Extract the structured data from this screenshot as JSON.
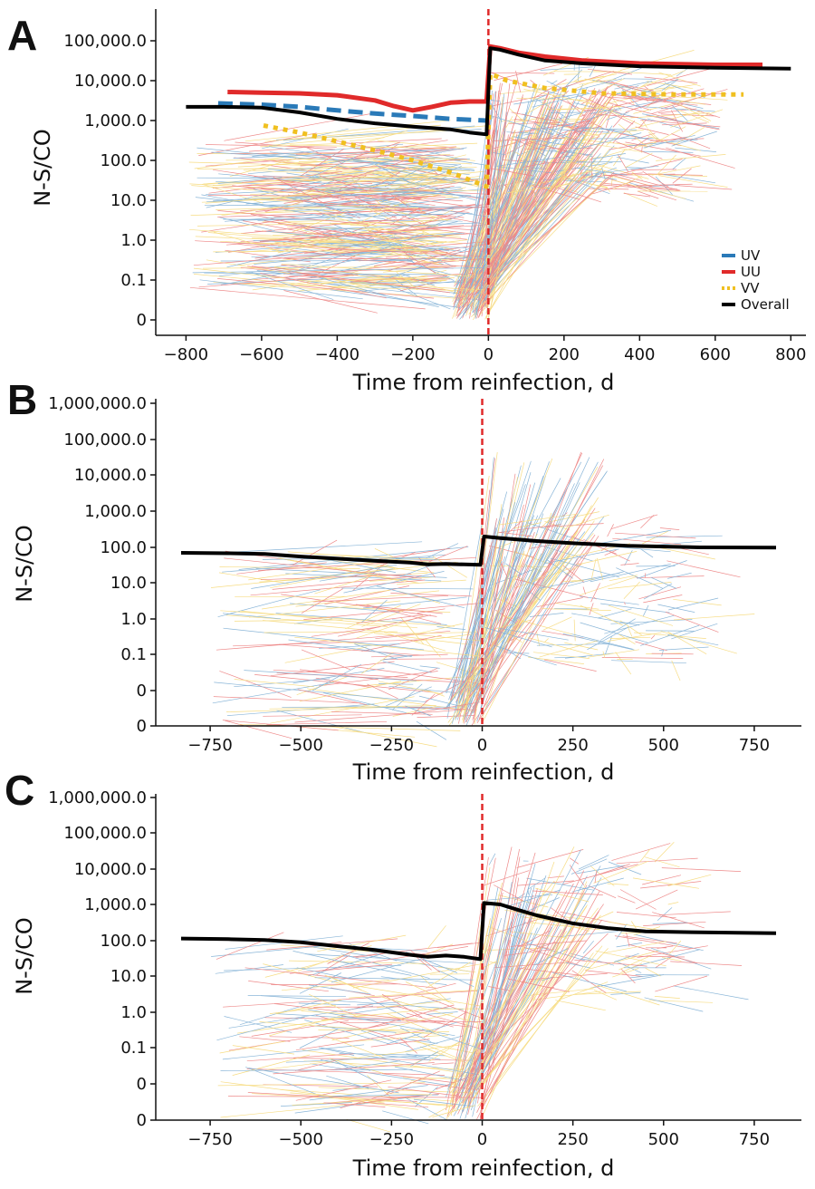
{
  "colors": {
    "UV": "#2a7ab8",
    "UU": "#e02a2a",
    "VV": "#f0c020",
    "Overall": "#000000",
    "reinfection_line": "#e02a2a",
    "axis": "#111111"
  },
  "chart_data": [
    {
      "type": "line",
      "panel": "A",
      "xlabel": "Time from reinfection, d",
      "ylabel": "N-S/CO",
      "xlim": [
        -880,
        840
      ],
      "xticks": [
        -800,
        -600,
        -400,
        -200,
        0,
        200,
        400,
        600,
        800
      ],
      "xtick_labels": [
        "−800",
        "−600",
        "−400",
        "−200",
        "0",
        "200",
        "400",
        "600",
        "800"
      ],
      "ylevels": [
        0,
        0.1,
        1,
        10,
        100,
        1000,
        10000,
        100000
      ],
      "ytick_labels": [
        "0",
        "0.1",
        "1.0",
        "10.0",
        "100.0",
        "1,000.0",
        "10,000.0",
        "100,000.0"
      ],
      "legend": {
        "position": "bottom-right",
        "entries": [
          "UV",
          "UU",
          "VV",
          "Overall"
        ]
      },
      "series": [
        {
          "name": "UV",
          "style": "dashed",
          "x": [
            -715,
            -600,
            -500,
            -400,
            -300,
            -200,
            -100,
            -5
          ],
          "y": [
            2700,
            2500,
            2200,
            1800,
            1500,
            1300,
            1100,
            1000
          ]
        },
        {
          "name": "UU",
          "style": "solid",
          "x": [
            -690,
            -600,
            -500,
            -400,
            -300,
            -250,
            -200,
            -150,
            -100,
            -50,
            -5,
            5,
            30,
            80,
            150,
            250,
            400,
            600,
            725
          ],
          "y": [
            5200,
            5000,
            4800,
            4300,
            3200,
            2300,
            1800,
            2200,
            2800,
            3000,
            3000,
            72000,
            65000,
            50000,
            40000,
            32000,
            27000,
            25000,
            25000
          ]
        },
        {
          "name": "VV",
          "style": "dotted",
          "x": [
            -595,
            -500,
            -400,
            -300,
            -200,
            -100,
            -5,
            5,
            50,
            150,
            300,
            500,
            675
          ],
          "y": [
            750,
            500,
            300,
            180,
            100,
            50,
            22,
            15000,
            10000,
            6500,
            4800,
            4500,
            4500
          ]
        },
        {
          "name": "Overall",
          "style": "solid",
          "x": [
            -800,
            -700,
            -600,
            -500,
            -400,
            -300,
            -200,
            -100,
            -50,
            -5,
            5,
            30,
            80,
            150,
            250,
            400,
            600,
            800
          ],
          "y": [
            2200,
            2200,
            2100,
            1600,
            1100,
            850,
            700,
            600,
            500,
            450,
            65000,
            60000,
            45000,
            32000,
            27000,
            23000,
            21000,
            20000
          ]
        }
      ]
    },
    {
      "type": "line",
      "panel": "B",
      "xlabel": "Time from reinfection, d",
      "ylabel": "N-S/CO",
      "xlim": [
        -900,
        880
      ],
      "xticks": [
        -750,
        -500,
        -250,
        0,
        250,
        500,
        750
      ],
      "xtick_labels": [
        "−750",
        "−500",
        "−250",
        "0",
        "250",
        "500",
        "750"
      ],
      "ylevels": [
        0,
        0,
        0.1,
        1,
        10,
        100,
        1000,
        10000,
        100000,
        1000000
      ],
      "ytick_labels": [
        "0",
        "0",
        "0.1",
        "1.0",
        "10.0",
        "100.0",
        "1,000.0",
        "10,000.0",
        "100,000.0",
        "1,000,000.0"
      ],
      "series": [
        {
          "name": "Overall",
          "style": "solid",
          "x": [
            -830,
            -700,
            -600,
            -500,
            -400,
            -300,
            -200,
            -150,
            -100,
            -50,
            -5,
            5,
            50,
            150,
            250,
            400,
            600,
            810
          ],
          "y": [
            70,
            68,
            65,
            55,
            48,
            42,
            37,
            33,
            34,
            33,
            32,
            200,
            180,
            150,
            130,
            110,
            100,
            98
          ]
        }
      ]
    },
    {
      "type": "line",
      "panel": "C",
      "xlabel": "Time from reinfection, d",
      "ylabel": "N-S/CO",
      "xlim": [
        -900,
        880
      ],
      "xticks": [
        -750,
        -500,
        -250,
        0,
        250,
        500,
        750
      ],
      "xtick_labels": [
        "−750",
        "−500",
        "−250",
        "0",
        "250",
        "500",
        "750"
      ],
      "ylevels": [
        0,
        0,
        0.1,
        1,
        10,
        100,
        1000,
        10000,
        100000,
        1000000
      ],
      "ytick_labels": [
        "0",
        "0",
        "0.1",
        "1.0",
        "10.0",
        "100.0",
        "1,000.0",
        "10,000.0",
        "100,000.0",
        "1,000,000.0"
      ],
      "series": [
        {
          "name": "Overall",
          "style": "solid",
          "x": [
            -830,
            -700,
            -600,
            -500,
            -400,
            -300,
            -200,
            -150,
            -100,
            -50,
            -5,
            5,
            50,
            100,
            150,
            250,
            350,
            450,
            600,
            810
          ],
          "y": [
            115,
            110,
            105,
            90,
            70,
            55,
            40,
            35,
            38,
            35,
            30,
            1100,
            1000,
            700,
            500,
            300,
            220,
            180,
            170,
            160
          ]
        }
      ]
    }
  ]
}
